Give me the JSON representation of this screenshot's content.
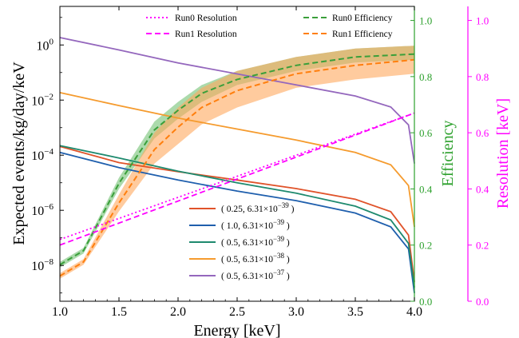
{
  "chart_data": {
    "type": "line",
    "xlabel": "Energy [keV]",
    "ylabel_left": "Expected events/kg/day/keV",
    "ylabel_right_1": "Efficiency",
    "ylabel_right_2": "Resolution [keV]",
    "xlim": [
      1.0,
      4.0
    ],
    "ylim_left_log10": [
      -9.3,
      1.4
    ],
    "ylim_efficiency": [
      0.0,
      1.05
    ],
    "ylim_resolution": [
      0.0,
      1.05
    ],
    "x_ticks": [
      "1.0",
      "1.5",
      "2.0",
      "2.5",
      "3.0",
      "3.5",
      "4.0"
    ],
    "y_left_ticks": [
      {
        "v": 0,
        "base": "10",
        "exp": "0"
      },
      {
        "v": -2,
        "base": "10",
        "exp": "−2"
      },
      {
        "v": -4,
        "base": "10",
        "exp": "−4"
      },
      {
        "v": -6,
        "base": "10",
        "exp": "−6"
      },
      {
        "v": -8,
        "base": "10",
        "exp": "−8"
      }
    ],
    "y_eff_ticks": [
      "0.0",
      "0.2",
      "0.4",
      "0.6",
      "0.8",
      "1.0"
    ],
    "y_res_ticks": [
      "0.0",
      "0.2",
      "0.4",
      "0.6",
      "0.8",
      "1.0"
    ],
    "colors": {
      "efficiency_axis": "#2ca02c",
      "resolution_axis": "#ff00ff",
      "run0_eff": "#3a9f3a",
      "run1_eff": "#ff7f0e",
      "run0_eff_band": "#66bb66",
      "run1_eff_band": "#ffa95e"
    },
    "signal_series": [
      {
        "name": "( 0.25, 6.31×10",
        "exp": "−39",
        "close": " )",
        "color": "#e0532a",
        "x": [
          1.0,
          1.5,
          2.0,
          2.5,
          3.0,
          3.5,
          3.8,
          3.95,
          4.0
        ],
        "log10y": [
          -3.68,
          -4.27,
          -4.6,
          -4.9,
          -5.21,
          -5.6,
          -6.05,
          -6.9,
          -8.6
        ]
      },
      {
        "name": "( 1.0, 6.31×10",
        "exp": "−39",
        "close": " )",
        "color": "#1f5fad",
        "x": [
          1.0,
          1.5,
          2.0,
          2.5,
          3.0,
          3.5,
          3.8,
          3.95,
          4.0
        ],
        "log10y": [
          -3.9,
          -4.45,
          -4.9,
          -5.3,
          -5.65,
          -6.1,
          -6.6,
          -7.4,
          -9.0
        ]
      },
      {
        "name": "( 0.5, 6.31×10",
        "exp": "−39",
        "close": " )",
        "color": "#1e8a6e",
        "x": [
          1.0,
          1.5,
          2.0,
          2.5,
          3.0,
          3.5,
          3.8,
          3.95,
          4.0
        ],
        "log10y": [
          -3.65,
          -4.1,
          -4.58,
          -5.0,
          -5.38,
          -5.85,
          -6.35,
          -7.2,
          -8.8
        ]
      },
      {
        "name": "( 0.5, 6.31×10",
        "exp": "−38",
        "close": " )",
        "color": "#f59b2e",
        "x": [
          1.0,
          1.5,
          2.0,
          2.5,
          3.0,
          3.5,
          3.8,
          3.95,
          4.0
        ],
        "log10y": [
          -1.73,
          -2.2,
          -2.65,
          -3.05,
          -3.45,
          -3.9,
          -4.35,
          -5.1,
          -6.6
        ]
      },
      {
        "name": "( 0.5, 6.31×10",
        "exp": "−37",
        "close": " )",
        "color": "#9467bd",
        "x": [
          1.0,
          1.5,
          2.0,
          2.5,
          3.0,
          3.5,
          3.8,
          3.95,
          4.0
        ],
        "log10y": [
          0.27,
          -0.18,
          -0.65,
          -1.05,
          -1.45,
          -1.85,
          -2.25,
          -2.9,
          -4.3
        ]
      }
    ],
    "efficiency_series": [
      {
        "name": "Run0 Efficiency",
        "color": "#3a9f3a",
        "x": [
          1.0,
          1.2,
          1.5,
          1.8,
          2.0,
          2.2,
          2.5,
          3.0,
          3.5,
          4.0
        ],
        "y": [
          0.13,
          0.18,
          0.42,
          0.61,
          0.68,
          0.74,
          0.79,
          0.84,
          0.87,
          0.88
        ],
        "band_lo": [
          0.12,
          0.17,
          0.4,
          0.58,
          0.65,
          0.71,
          0.77,
          0.82,
          0.85,
          0.86
        ],
        "band_hi": [
          0.14,
          0.19,
          0.44,
          0.64,
          0.71,
          0.77,
          0.82,
          0.87,
          0.9,
          0.91
        ]
      },
      {
        "name": "Run1 Efficiency",
        "color": "#ff7f0e",
        "x": [
          1.0,
          1.2,
          1.5,
          1.8,
          2.0,
          2.2,
          2.5,
          3.0,
          3.5,
          4.0
        ],
        "y": [
          0.09,
          0.14,
          0.35,
          0.54,
          0.62,
          0.69,
          0.75,
          0.81,
          0.84,
          0.86
        ],
        "band_lo": [
          0.08,
          0.13,
          0.32,
          0.49,
          0.56,
          0.63,
          0.69,
          0.76,
          0.79,
          0.81
        ],
        "band_hi": [
          0.1,
          0.15,
          0.38,
          0.6,
          0.69,
          0.76,
          0.82,
          0.87,
          0.9,
          0.91
        ]
      }
    ],
    "resolution_series": [
      {
        "name": "Run0 Resolution",
        "style": "dotted",
        "x": [
          1.0,
          4.0
        ],
        "y": [
          0.22,
          0.67
        ]
      },
      {
        "name": "Run1 Resolution",
        "style": "dashed",
        "x": [
          1.0,
          4.0
        ],
        "y": [
          0.2,
          0.67
        ]
      }
    ]
  }
}
